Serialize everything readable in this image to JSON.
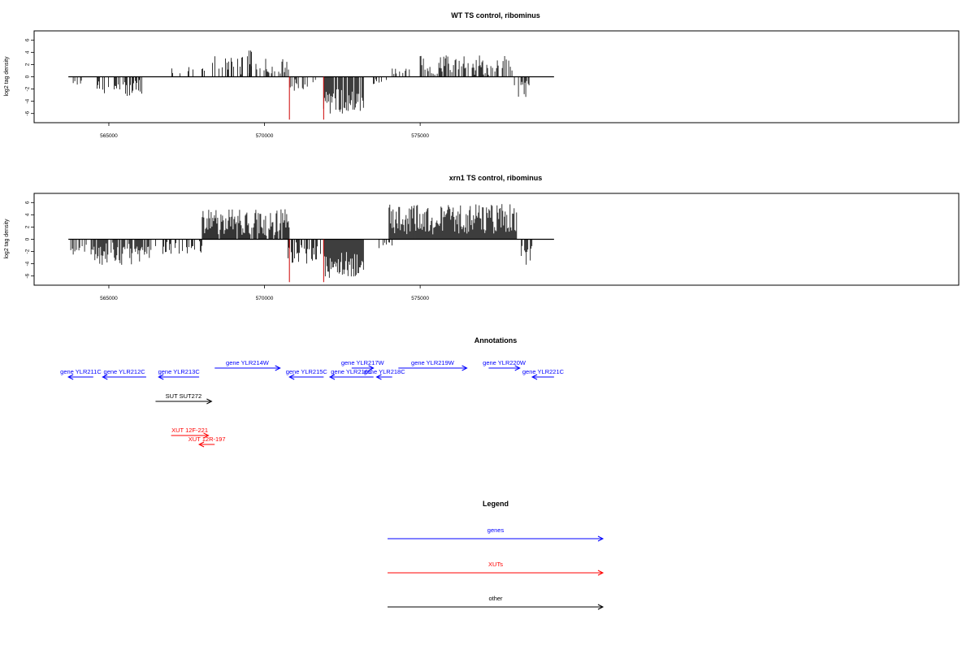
{
  "chart_data": [
    {
      "type": "bar",
      "title": "WT TS control, ribominus",
      "xlabel": "",
      "ylabel": "log2 tag density",
      "xlim": [
        562600,
        592300
      ],
      "ylim": [
        -7.5,
        7.5
      ],
      "xticks": [
        565000,
        570000,
        575000
      ],
      "yticks": [
        -6,
        -4,
        -2,
        0,
        2,
        4,
        6
      ],
      "grid": false,
      "marker_color": "#cc0000",
      "markers": [
        {
          "x": 570800,
          "y": -7
        },
        {
          "x": 571900,
          "y": -7
        }
      ],
      "segments": [
        {
          "from": 563700,
          "to": 564300,
          "density": 0.7,
          "sign": -1,
          "lo": 0.5,
          "hi": 2.0
        },
        {
          "from": 564600,
          "to": 566200,
          "density": 0.9,
          "sign": -1,
          "lo": 0.4,
          "hi": 3.2
        },
        {
          "from": 567000,
          "to": 568200,
          "density": 0.3,
          "sign": 1,
          "lo": 0.3,
          "hi": 1.6
        },
        {
          "from": 568300,
          "to": 569600,
          "density": 0.8,
          "sign": 1,
          "lo": 0.4,
          "hi": 3.5
        },
        {
          "from": 569500,
          "to": 569600,
          "density": 1.0,
          "sign": 1,
          "lo": 4.0,
          "hi": 4.8
        },
        {
          "from": 569700,
          "to": 570800,
          "density": 0.8,
          "sign": 1,
          "lo": 0.5,
          "hi": 3.2
        },
        {
          "from": 570800,
          "to": 571800,
          "density": 0.6,
          "sign": -1,
          "lo": 0.4,
          "hi": 2.4
        },
        {
          "from": 571900,
          "to": 573200,
          "density": 1.6,
          "sign": -1,
          "lo": 2.0,
          "hi": 6.0
        },
        {
          "from": 573500,
          "to": 574000,
          "density": 0.5,
          "sign": -1,
          "lo": 0.3,
          "hi": 1.2
        },
        {
          "from": 574000,
          "to": 575000,
          "density": 0.5,
          "sign": 1,
          "lo": 0.3,
          "hi": 1.4
        },
        {
          "from": 575000,
          "to": 578000,
          "density": 1.0,
          "sign": 1,
          "lo": 0.3,
          "hi": 3.5
        },
        {
          "from": 578000,
          "to": 578500,
          "density": 0.9,
          "sign": -1,
          "lo": 0.5,
          "hi": 3.5
        }
      ]
    },
    {
      "type": "bar",
      "title": "xrn1 TS control, ribominus",
      "xlabel": "",
      "ylabel": "log2 tag density",
      "xlim": [
        562600,
        592300
      ],
      "ylim": [
        -7.5,
        7.5
      ],
      "xticks": [
        565000,
        570000,
        575000
      ],
      "yticks": [
        -6,
        -4,
        -2,
        0,
        2,
        4,
        6
      ],
      "grid": false,
      "marker_color": "#cc0000",
      "markers": [
        {
          "x": 570800,
          "y": -7
        },
        {
          "x": 571900,
          "y": -7
        }
      ],
      "segments": [
        {
          "from": 563700,
          "to": 564500,
          "density": 0.9,
          "sign": -1,
          "lo": 0.4,
          "hi": 2.5
        },
        {
          "from": 564500,
          "to": 566400,
          "density": 1.4,
          "sign": -1,
          "lo": 0.5,
          "hi": 4.2
        },
        {
          "from": 566500,
          "to": 568000,
          "density": 0.7,
          "sign": -1,
          "lo": 0.3,
          "hi": 2.4
        },
        {
          "from": 568000,
          "to": 570800,
          "density": 1.6,
          "sign": 1,
          "lo": 0.5,
          "hi": 5.0
        },
        {
          "from": 570700,
          "to": 571800,
          "density": 1.2,
          "sign": -1,
          "lo": 0.5,
          "hi": 4.0
        },
        {
          "from": 571900,
          "to": 573200,
          "density": 2.0,
          "sign": -1,
          "lo": 2.0,
          "hi": 6.3
        },
        {
          "from": 573600,
          "to": 574100,
          "density": 0.5,
          "sign": -1,
          "lo": 0.3,
          "hi": 1.5
        },
        {
          "from": 574000,
          "to": 578100,
          "density": 2.0,
          "sign": 1,
          "lo": 0.8,
          "hi": 5.8
        },
        {
          "from": 578200,
          "to": 578600,
          "density": 1.4,
          "sign": -1,
          "lo": 1.0,
          "hi": 4.5
        }
      ]
    }
  ],
  "annotations": {
    "title": "Annotations",
    "features": [
      {
        "label": "gene YLR211C",
        "from": 563700,
        "to": 564500,
        "strand": "-",
        "type": "gene",
        "row": 1
      },
      {
        "label": "gene YLR212C",
        "from": 564800,
        "to": 566200,
        "strand": "-",
        "type": "gene",
        "row": 1
      },
      {
        "label": "gene YLR213C",
        "from": 566600,
        "to": 567900,
        "strand": "-",
        "type": "gene",
        "row": 1
      },
      {
        "label": "gene YLR214W",
        "from": 568400,
        "to": 570500,
        "strand": "+",
        "type": "gene",
        "row": 0
      },
      {
        "label": "gene YLR215C",
        "from": 570800,
        "to": 571900,
        "strand": "-",
        "type": "gene",
        "row": 1
      },
      {
        "label": "gene YLR216C",
        "from": 572100,
        "to": 573500,
        "strand": "-",
        "type": "gene",
        "row": 1
      },
      {
        "label": "gene YLR217W",
        "from": 572800,
        "to": 573500,
        "strand": "+",
        "type": "gene",
        "row": 0
      },
      {
        "label": "gene YLR218C",
        "from": 573600,
        "to": 574100,
        "strand": "-",
        "type": "gene",
        "row": 1
      },
      {
        "label": "gene YLR219W",
        "from": 574300,
        "to": 576500,
        "strand": "+",
        "type": "gene",
        "row": 0
      },
      {
        "label": "gene YLR220W",
        "from": 577200,
        "to": 578200,
        "strand": "+",
        "type": "gene",
        "row": 0
      },
      {
        "label": "gene YLR221C",
        "from": 578600,
        "to": 579300,
        "strand": "-",
        "type": "gene",
        "row": 1
      },
      {
        "label": "SUT SUT272",
        "from": 566500,
        "to": 568300,
        "strand": "+",
        "type": "other",
        "row": 2
      },
      {
        "label": "XUT 12F-221",
        "from": 567000,
        "to": 568200,
        "strand": "+",
        "type": "xut",
        "row": 3
      },
      {
        "label": "XUT 12R-197",
        "from": 567900,
        "to": 568400,
        "strand": "-",
        "type": "xut",
        "row": 4
      }
    ]
  },
  "legend": {
    "title": "Legend",
    "items": [
      {
        "label": "genes",
        "color": "#0000ff"
      },
      {
        "label": "XUTs",
        "color": "#ff0000"
      },
      {
        "label": "other",
        "color": "#000000"
      }
    ]
  },
  "colors": {
    "gene": "#0000ff",
    "xut": "#ff0000",
    "other": "#000000"
  }
}
